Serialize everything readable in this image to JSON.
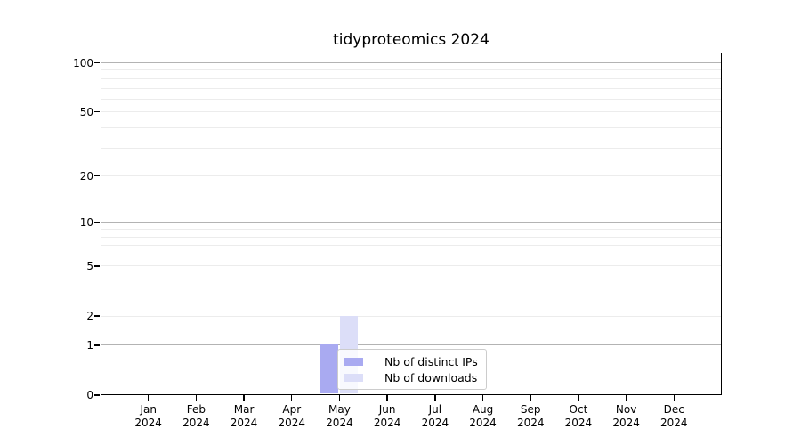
{
  "chart_data": {
    "type": "bar",
    "title": "tidyproteomics 2024",
    "categories": [
      "Jan 2024",
      "Feb 2024",
      "Mar 2024",
      "Apr 2024",
      "May 2024",
      "Jun 2024",
      "Jul 2024",
      "Aug 2024",
      "Sep 2024",
      "Oct 2024",
      "Nov 2024",
      "Dec 2024"
    ],
    "month_labels": [
      "Jan",
      "Feb",
      "Mar",
      "Apr",
      "May",
      "Jun",
      "Jul",
      "Aug",
      "Sep",
      "Oct",
      "Nov",
      "Dec"
    ],
    "year_label": "2024",
    "series": [
      {
        "name": "Nb of distinct IPs",
        "color": "#a9aaf1",
        "values": [
          0,
          0,
          0,
          0,
          1,
          0,
          0,
          0,
          0,
          0,
          0,
          0
        ]
      },
      {
        "name": "Nb of downloads",
        "color": "#dcdef8",
        "values": [
          0,
          0,
          0,
          0,
          2,
          0,
          0,
          0,
          0,
          0,
          0,
          0
        ]
      }
    ],
    "yscale": "log1p",
    "ylim": [
      0,
      117
    ],
    "yticks": [
      0,
      1,
      2,
      5,
      10,
      20,
      50,
      100
    ],
    "major_grid_values": [
      1,
      10,
      100
    ],
    "minor_grid_values": [
      2,
      3,
      4,
      5,
      6,
      7,
      8,
      9,
      20,
      30,
      40,
      50,
      60,
      70,
      80,
      90
    ],
    "grid": "horizontal",
    "legend_position": "inside-lower-center"
  },
  "colors": {
    "major_grid": "#b3b3b3",
    "minor_grid": "#ececec",
    "axis": "#000000",
    "background": "#ffffff"
  }
}
